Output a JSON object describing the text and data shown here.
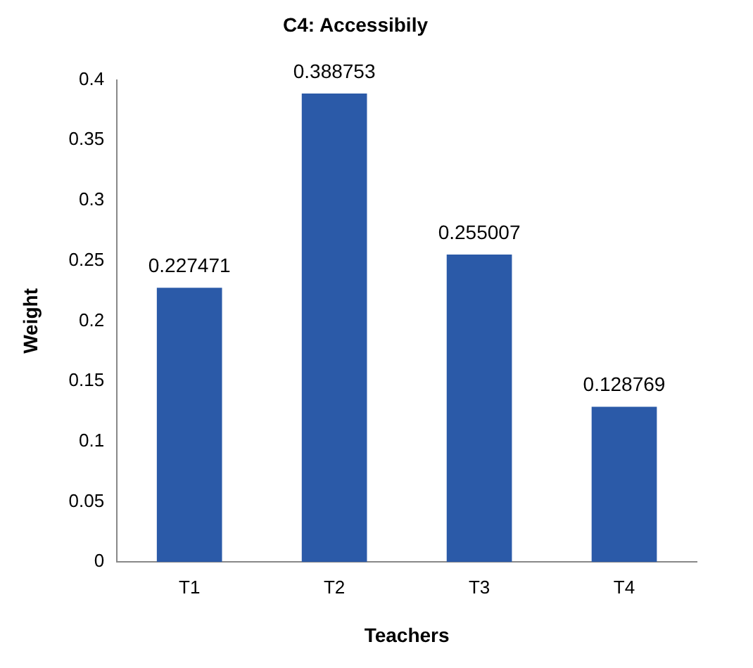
{
  "chart_data": {
    "type": "bar",
    "title": "C4: Accessibily",
    "xlabel": "Teachers",
    "ylabel": "Weight",
    "categories": [
      "T1",
      "T2",
      "T3",
      "T4"
    ],
    "values": [
      0.227471,
      0.388753,
      0.255007,
      0.128769
    ],
    "color": "#2b5aa8",
    "ylim": [
      0,
      0.4
    ],
    "yticks": [
      0,
      0.05,
      0.1,
      0.15,
      0.2,
      0.25,
      0.3,
      0.35,
      0.4
    ],
    "data_labels": true
  }
}
